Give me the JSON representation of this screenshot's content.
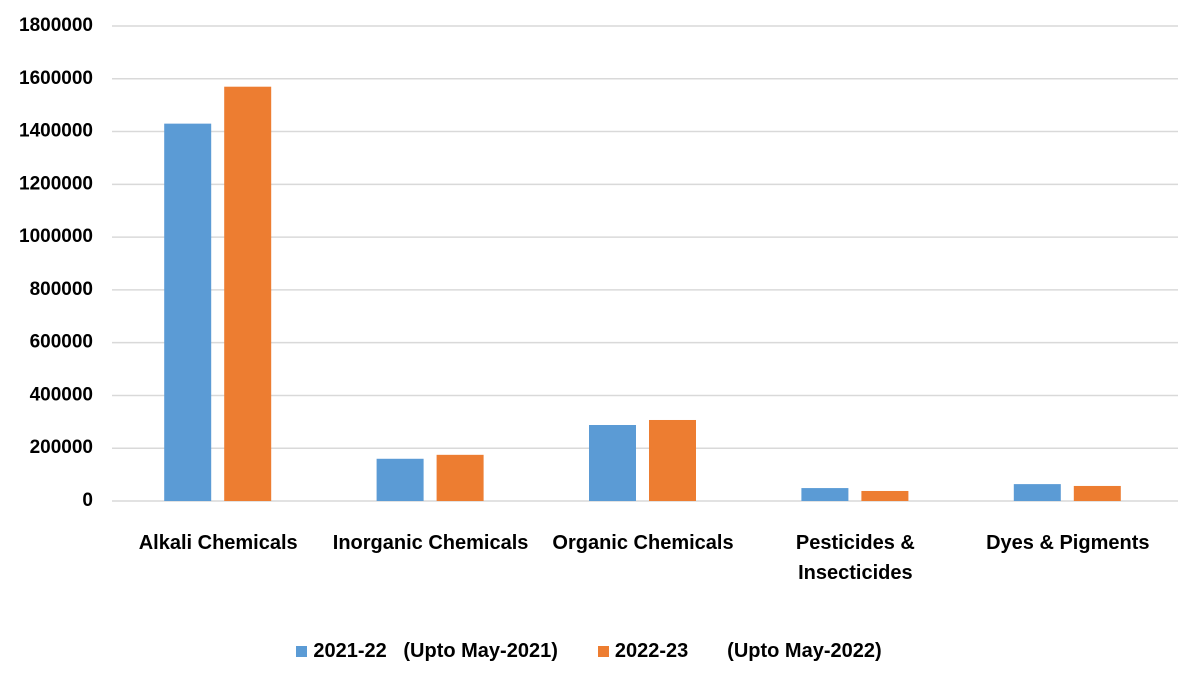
{
  "chart_data": {
    "type": "bar",
    "categories": [
      "Alkali Chemicals",
      "Inorganic Chemicals",
      "Organic Chemicals",
      "Pesticides & Insecticides",
      "Dyes & Pigments"
    ],
    "series": [
      {
        "name": "2021-22   (Upto May-2021)",
        "color": "#5b9bd5",
        "values": [
          1430000,
          160000,
          288000,
          49000,
          64000
        ]
      },
      {
        "name": "2022-23       (Upto May-2022)",
        "color": "#ed7d31",
        "values": [
          1570000,
          175000,
          307000,
          38000,
          57000
        ]
      }
    ],
    "ylim": [
      0,
      1800000
    ],
    "yticks": [
      0,
      200000,
      400000,
      600000,
      800000,
      1000000,
      1200000,
      1400000,
      1600000,
      1800000
    ],
    "grid": true,
    "legend": "bottom"
  }
}
